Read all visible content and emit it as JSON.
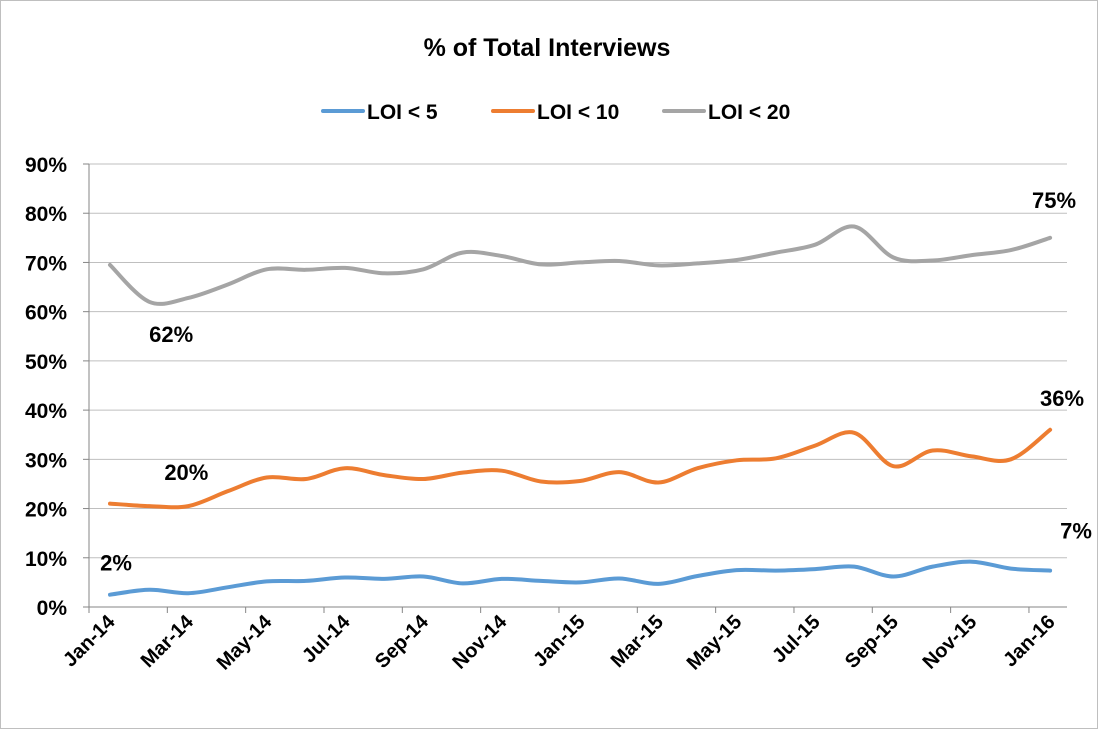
{
  "chart_data": {
    "type": "line",
    "title": "% of Total Interviews",
    "xlabel": "",
    "ylabel": "",
    "ylim": [
      0,
      90
    ],
    "yticks": [
      "0%",
      "10%",
      "20%",
      "30%",
      "40%",
      "50%",
      "60%",
      "70%",
      "80%",
      "90%"
    ],
    "grid": true,
    "legend_position": "top",
    "x": [
      "Jan-14",
      "Feb-14",
      "Mar-14",
      "Apr-14",
      "May-14",
      "Jun-14",
      "Jul-14",
      "Aug-14",
      "Sep-14",
      "Oct-14",
      "Nov-14",
      "Dec-14",
      "Jan-15",
      "Feb-15",
      "Mar-15",
      "Apr-15",
      "May-15",
      "Jun-15",
      "Jul-15",
      "Aug-15",
      "Sep-15",
      "Oct-15",
      "Nov-15",
      "Dec-15",
      "Jan-16"
    ],
    "xtick_labels": [
      "Jan-14",
      "Mar-14",
      "May-14",
      "Jul-14",
      "Sep-14",
      "Nov-14",
      "Jan-15",
      "Mar-15",
      "May-15",
      "Jul-15",
      "Sep-15",
      "Nov-15",
      "Jan-16"
    ],
    "series": [
      {
        "name": "LOI < 5",
        "color": "#5b9bd5",
        "values": [
          2.5,
          3.5,
          2.8,
          4.0,
          5.2,
          5.3,
          6.0,
          5.7,
          6.2,
          4.8,
          5.7,
          5.3,
          5.0,
          5.8,
          4.7,
          6.3,
          7.5,
          7.4,
          7.7,
          8.2,
          6.2,
          8.2,
          9.2,
          7.8,
          7.4
        ],
        "labels": [
          {
            "index": 0,
            "text": "2%"
          },
          {
            "index": 24,
            "text": "7%"
          }
        ]
      },
      {
        "name": "LOI < 10",
        "color": "#ed7d31",
        "values": [
          21.0,
          20.5,
          20.5,
          23.5,
          26.3,
          26.0,
          28.2,
          26.8,
          26.0,
          27.3,
          27.7,
          25.5,
          25.6,
          27.4,
          25.3,
          28.2,
          29.8,
          30.2,
          32.8,
          35.4,
          28.6,
          31.8,
          30.6,
          30.0,
          36.0
        ],
        "labels": [
          {
            "index": 2,
            "text": "20%"
          },
          {
            "index": 24,
            "text": "36%"
          }
        ]
      },
      {
        "name": "LOI < 20",
        "color": "#a5a5a5",
        "values": [
          69.5,
          62.0,
          62.8,
          65.5,
          68.6,
          68.5,
          68.9,
          67.8,
          68.6,
          72.0,
          71.3,
          69.6,
          70.0,
          70.3,
          69.4,
          69.8,
          70.5,
          72.0,
          73.6,
          77.3,
          71.0,
          70.4,
          71.5,
          72.5,
          75.0
        ],
        "labels": [
          {
            "index": 1,
            "text": "62%"
          },
          {
            "index": 24,
            "text": "75%"
          }
        ]
      }
    ]
  }
}
